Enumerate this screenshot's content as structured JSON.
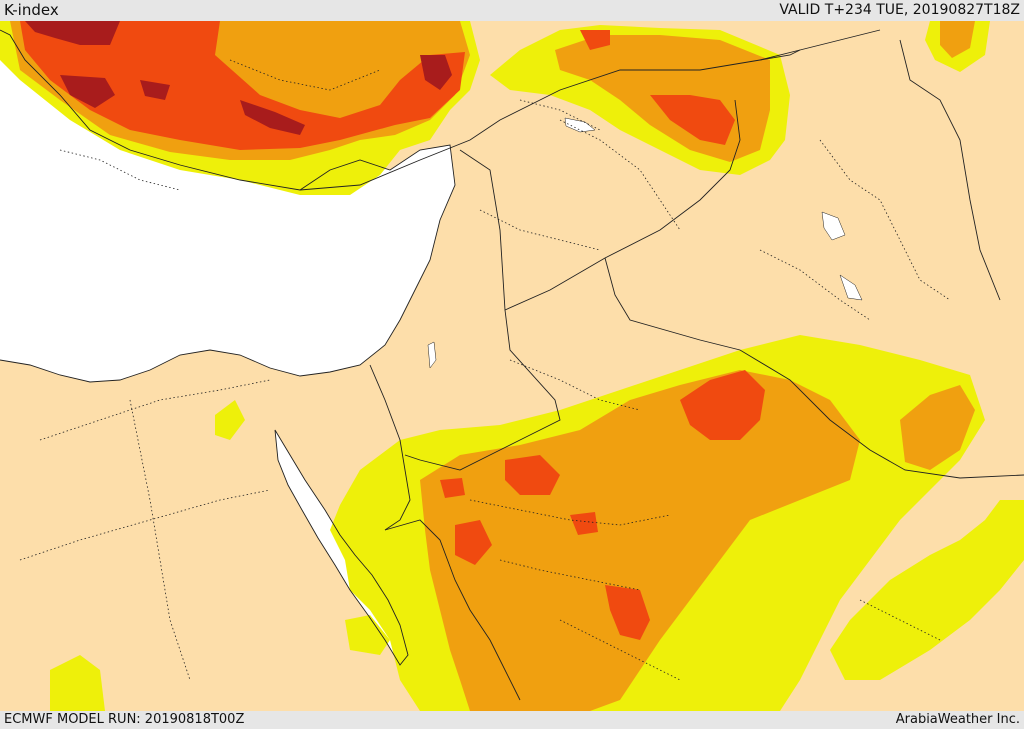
{
  "header": {
    "title": "K-index",
    "valid": "VALID T+234 TUE, 20190827T18Z"
  },
  "footer": {
    "model_run": "ECMWF MODEL RUN: 20190818T00Z",
    "credit": "ArabiaWeather Inc."
  },
  "colors": {
    "land": "#fddeaa",
    "sea": "#ffffff",
    "level_1": "#eef00a",
    "level_2": "#f0a010",
    "level_3": "#f04a10",
    "level_4": "#a81c1c",
    "border": "#222222",
    "bars": "#e6e6e6"
  }
}
